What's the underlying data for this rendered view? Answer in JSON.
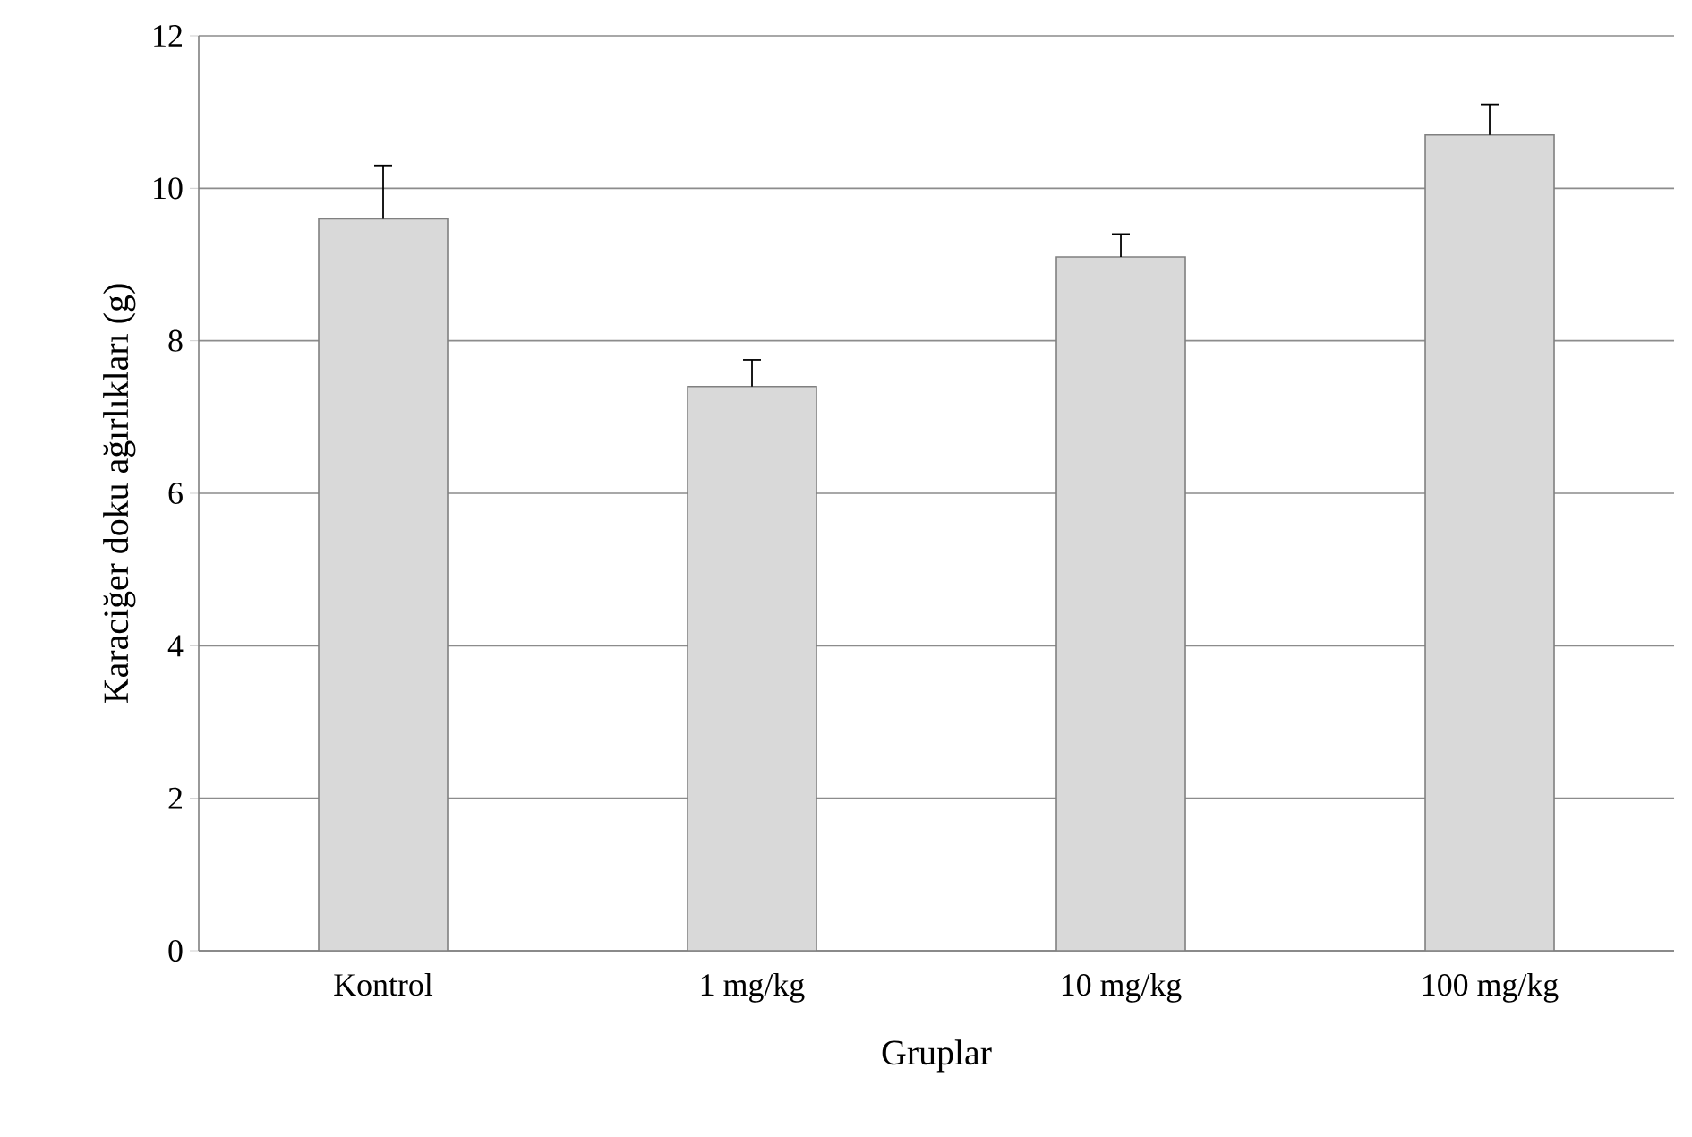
{
  "chart_data": {
    "type": "bar",
    "xlabel": "Gruplar",
    "ylabel": "Karaciğer doku ağırlıkları (g)",
    "categories": [
      "Kontrol",
      "1 mg/kg",
      "10 mg/kg",
      "100 mg/kg"
    ],
    "values": [
      9.6,
      7.4,
      9.1,
      10.7
    ],
    "errors": [
      [
        9.6,
        10.3
      ],
      [
        7.4,
        7.75
      ],
      [
        9.1,
        9.4
      ],
      [
        10.7,
        11.1
      ]
    ],
    "color": "#d9d9d9",
    "ylim": [
      0,
      12
    ],
    "yticks": [
      0,
      2,
      4,
      6,
      8,
      10,
      12
    ],
    "grid": "y"
  }
}
